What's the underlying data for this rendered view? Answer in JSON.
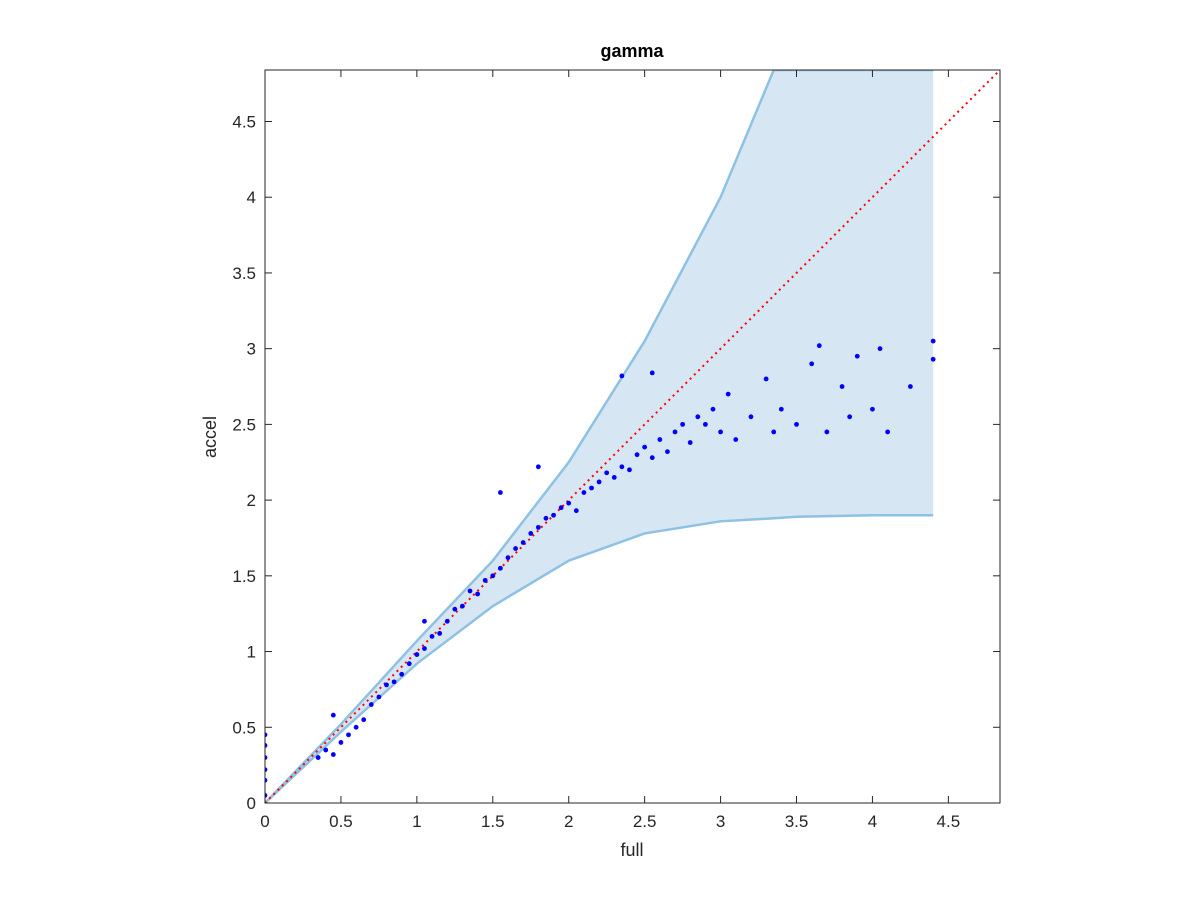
{
  "chart_data": {
    "type": "scatter",
    "title": "gamma",
    "x_label": "full",
    "y_label": "accel",
    "xlim": [
      0,
      4.84
    ],
    "ylim": [
      0,
      4.84
    ],
    "xticks": [
      0,
      0.5,
      1,
      1.5,
      2,
      2.5,
      3,
      3.5,
      4,
      4.5
    ],
    "yticks": [
      0,
      0.5,
      1,
      1.5,
      2,
      2.5,
      3,
      3.5,
      4,
      4.5
    ],
    "color": "#0000ff",
    "x": [
      0,
      0,
      0,
      0,
      0,
      0,
      0.35,
      0.4,
      0.45,
      0.5,
      0.55,
      0.6,
      0.65,
      0.7,
      0.75,
      0.8,
      0.85,
      0.9,
      0.95,
      1.0,
      1.05,
      1.1,
      1.15,
      1.2,
      1.25,
      1.3,
      1.35,
      1.4,
      1.45,
      1.5,
      1.55,
      1.6,
      1.65,
      1.7,
      1.75,
      1.8,
      1.85,
      1.9,
      1.95,
      2.0,
      2.05,
      2.1,
      2.15,
      2.2,
      2.25,
      2.3,
      2.35,
      2.4,
      2.45,
      2.5,
      2.55,
      2.6,
      2.65,
      2.7,
      2.75,
      2.8,
      2.85,
      2.9,
      2.95,
      3.0,
      3.05,
      3.1,
      3.2,
      3.3,
      3.35,
      3.4,
      3.5,
      3.6,
      3.65,
      3.7,
      3.8,
      3.85,
      3.9,
      4.0,
      4.05,
      4.1,
      4.25,
      4.4,
      4.4,
      1.55,
      1.8,
      2.35,
      2.55,
      0.45,
      1.05
    ],
    "y": [
      0.05,
      0.15,
      0.22,
      0.3,
      0.38,
      0.45,
      0.3,
      0.35,
      0.32,
      0.4,
      0.45,
      0.5,
      0.55,
      0.65,
      0.7,
      0.78,
      0.8,
      0.85,
      0.92,
      0.98,
      1.02,
      1.1,
      1.12,
      1.2,
      1.28,
      1.3,
      1.4,
      1.38,
      1.47,
      1.5,
      1.55,
      1.62,
      1.68,
      1.72,
      1.78,
      1.82,
      1.88,
      1.9,
      1.95,
      1.98,
      1.93,
      2.05,
      2.08,
      2.12,
      2.18,
      2.15,
      2.22,
      2.2,
      2.3,
      2.35,
      2.28,
      2.4,
      2.32,
      2.45,
      2.5,
      2.38,
      2.55,
      2.5,
      2.6,
      2.45,
      2.7,
      2.4,
      2.55,
      2.8,
      2.45,
      2.6,
      2.5,
      2.9,
      3.02,
      2.45,
      2.75,
      2.55,
      2.95,
      2.6,
      3.0,
      2.45,
      2.75,
      2.93,
      3.05,
      2.05,
      2.22,
      2.82,
      2.84,
      0.58,
      1.2
    ],
    "band": {
      "x": [
        0,
        0.5,
        1,
        1.5,
        2,
        2.5,
        3,
        3.35,
        3.5,
        4,
        4.4
      ],
      "upper": [
        0,
        0.52,
        1.07,
        1.6,
        2.25,
        3.05,
        4.0,
        4.84,
        4.84,
        4.84,
        4.84
      ],
      "lower": [
        0,
        0.47,
        0.92,
        1.3,
        1.6,
        1.78,
        1.86,
        1.88,
        1.89,
        1.9,
        1.9
      ],
      "color": "#d6e7f3",
      "edge_color": "#8fc1e3"
    },
    "reference": {
      "x": [
        0,
        4.84
      ],
      "y": [
        0,
        4.84
      ],
      "color": "#ff0000"
    }
  }
}
